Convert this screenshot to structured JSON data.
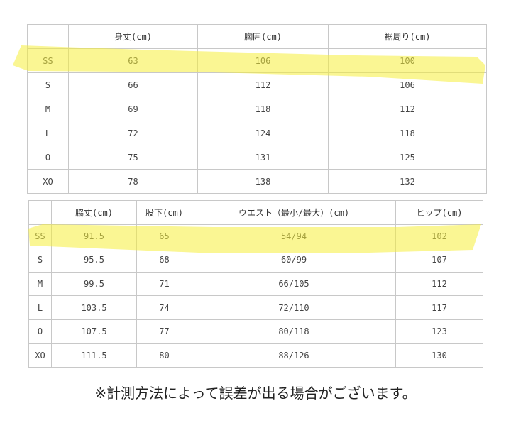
{
  "highlight_color": "#f5ee3a",
  "top_table": {
    "headers": [
      "",
      "身丈(cm)",
      "胸囲(cm)",
      "裾周り(cm)"
    ],
    "rows": [
      [
        "SS",
        "63",
        "106",
        "100"
      ],
      [
        "S",
        "66",
        "112",
        "106"
      ],
      [
        "M",
        "69",
        "118",
        "112"
      ],
      [
        "L",
        "72",
        "124",
        "118"
      ],
      [
        "O",
        "75",
        "131",
        "125"
      ],
      [
        "XO",
        "78",
        "138",
        "132"
      ]
    ]
  },
  "bottom_table": {
    "headers": [
      "",
      "脇丈(cm)",
      "股下(cm)",
      "ウエスト（最小/最大）(cm)",
      "ヒップ(cm)"
    ],
    "rows": [
      [
        "SS",
        "91.5",
        "65",
        "54/94",
        "102"
      ],
      [
        "S",
        "95.5",
        "68",
        "60/99",
        "107"
      ],
      [
        "M",
        "99.5",
        "71",
        "66/105",
        "112"
      ],
      [
        "L",
        "103.5",
        "74",
        "72/110",
        "117"
      ],
      [
        "O",
        "107.5",
        "77",
        "80/118",
        "123"
      ],
      [
        "XO",
        "111.5",
        "80",
        "88/126",
        "130"
      ]
    ]
  },
  "note": "※計測方法によって誤差が出る場合がございます。"
}
